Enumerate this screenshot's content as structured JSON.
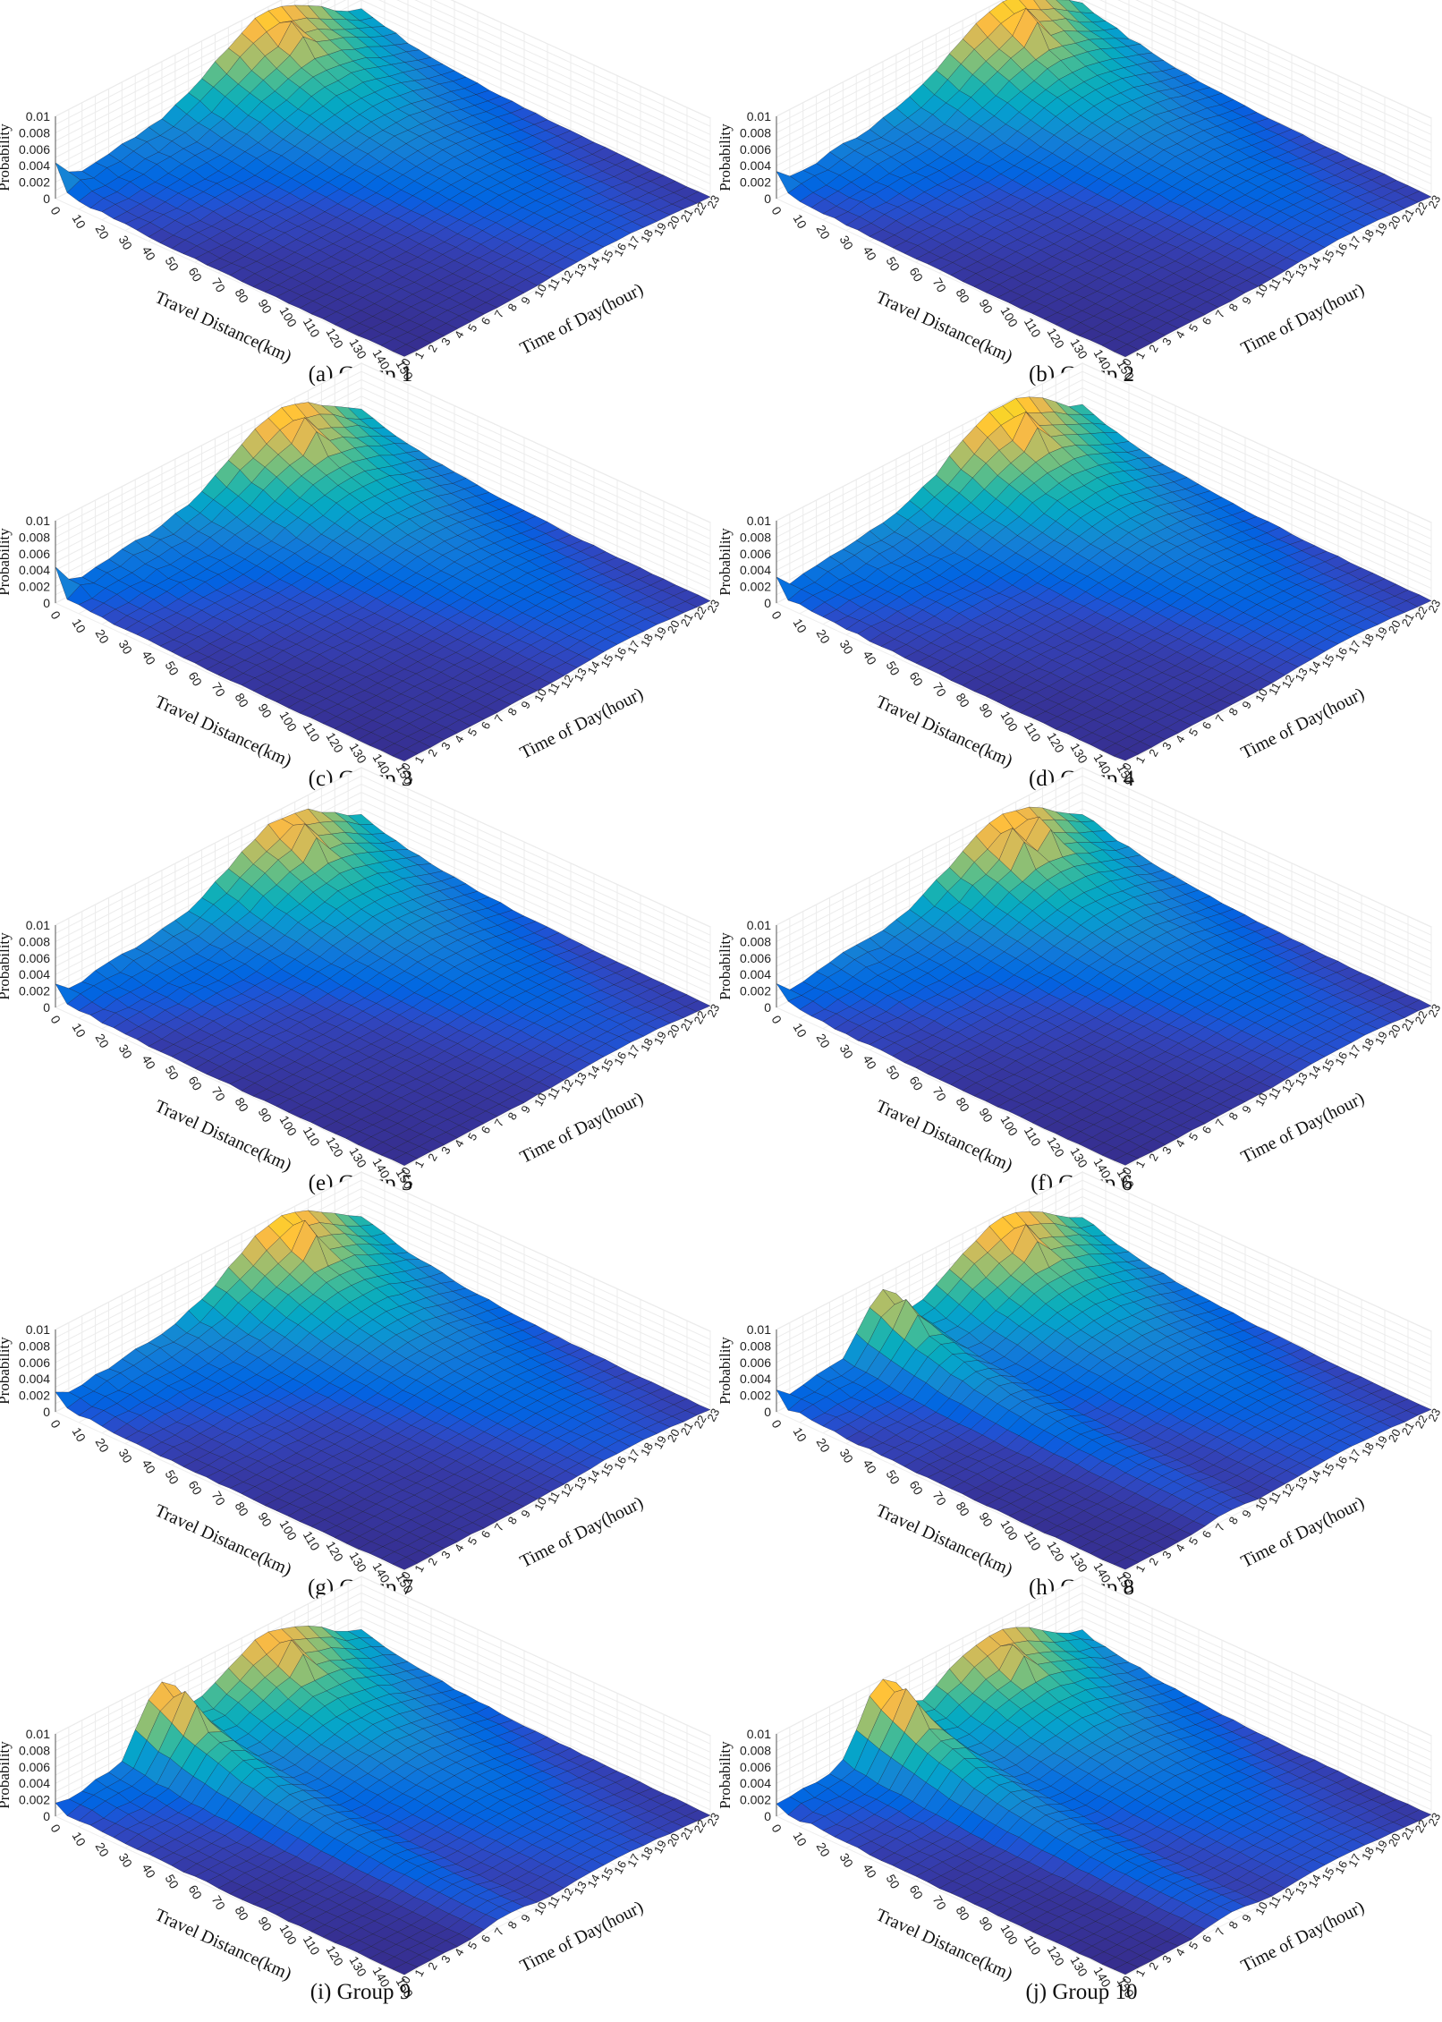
{
  "figure": {
    "panels": [
      {
        "caption": "(a) Group 1"
      },
      {
        "caption": "(b) Group 2"
      },
      {
        "caption": "(c) Group 3"
      },
      {
        "caption": "(d) Group 4"
      },
      {
        "caption": "(e) Group 5"
      },
      {
        "caption": "(f) Group 6"
      },
      {
        "caption": "(g) Group 7"
      },
      {
        "caption": "(h) Group 8"
      },
      {
        "caption": "(i) Group 9"
      },
      {
        "caption": "(j) Group 10"
      }
    ]
  },
  "chart_data": [
    {
      "type": "surface",
      "title": "",
      "caption": "(a) Group 1",
      "xlabel": "Travel Distance(km)",
      "ylabel": "Time of Day(hour)",
      "zlabel": "Probability",
      "x_ticks": [
        "0",
        "10",
        "20",
        "30",
        "40",
        "50",
        "60",
        "70",
        "80",
        "90",
        "100",
        "110",
        "120",
        "130",
        "140",
        "150"
      ],
      "y_ticks": [
        "0",
        "1",
        "2",
        "3",
        "4",
        "5",
        "6",
        "7",
        "8",
        "9",
        "10",
        "11",
        "12",
        "13",
        "14",
        "15",
        "16",
        "17",
        "18",
        "19",
        "20",
        "21",
        "22",
        "23"
      ],
      "z_ticks": [
        "0",
        "0.002",
        "0.004",
        "0.006",
        "0.008",
        "0.01"
      ],
      "zlim": [
        0,
        0.01
      ],
      "colormap": "parula",
      "peaks": [
        {
          "distance": 10,
          "hour": 16,
          "value": 0.0096
        }
      ],
      "ridge_hour": 16,
      "ridge_value": 0.0095,
      "morning_bump": 0.0,
      "corner_value": 0.0045,
      "corner_dip": 0.0012
    },
    {
      "type": "surface",
      "title": "",
      "caption": "(b) Group 2",
      "xlabel": "Travel Distance(km)",
      "ylabel": "Time of Day(hour)",
      "zlabel": "Probability",
      "x_ticks": [
        "0",
        "10",
        "20",
        "30",
        "40",
        "50",
        "60",
        "70",
        "80",
        "90",
        "100",
        "110",
        "120",
        "130",
        "140",
        "150"
      ],
      "y_ticks": [
        "0",
        "1",
        "2",
        "3",
        "4",
        "5",
        "6",
        "7",
        "8",
        "9",
        "10",
        "11",
        "12",
        "13",
        "14",
        "15",
        "16",
        "17",
        "18",
        "19",
        "20",
        "21",
        "22",
        "23"
      ],
      "z_ticks": [
        "0",
        "0.002",
        "0.004",
        "0.006",
        "0.008",
        "0.01"
      ],
      "zlim": [
        0,
        0.01
      ],
      "colormap": "parula",
      "peaks": [
        {
          "distance": 10,
          "hour": 17,
          "value": 0.0104
        }
      ],
      "ridge_hour": 17,
      "ridge_value": 0.0098,
      "morning_bump": 0.0,
      "corner_value": 0.0035,
      "corner_dip": 0.0012
    },
    {
      "type": "surface",
      "title": "",
      "caption": "(c) Group 3",
      "xlabel": "Travel Distance(km)",
      "ylabel": "Time of Day(hour)",
      "zlabel": "Probability",
      "x_ticks": [
        "0",
        "10",
        "20",
        "30",
        "40",
        "50",
        "60",
        "70",
        "80",
        "90",
        "100",
        "110",
        "120",
        "130",
        "140",
        "150"
      ],
      "y_ticks": [
        "0",
        "1",
        "2",
        "3",
        "4",
        "5",
        "6",
        "7",
        "8",
        "9",
        "10",
        "11",
        "12",
        "13",
        "14",
        "15",
        "16",
        "17",
        "18",
        "19",
        "20",
        "21",
        "22",
        "23"
      ],
      "z_ticks": [
        "0",
        "0.002",
        "0.004",
        "0.006",
        "0.008",
        "0.01"
      ],
      "zlim": [
        0,
        0.01
      ],
      "colormap": "parula",
      "peaks": [
        {
          "distance": 10,
          "hour": 17,
          "value": 0.0098
        }
      ],
      "ridge_hour": 17,
      "ridge_value": 0.0094,
      "morning_bump": 0.0,
      "corner_value": 0.0045,
      "corner_dip": 0.0012
    },
    {
      "type": "surface",
      "title": "",
      "caption": "(d) Group 4",
      "xlabel": "Travel Distance(km)",
      "ylabel": "Time of Day(hour)",
      "zlabel": "Probability",
      "x_ticks": [
        "0",
        "10",
        "20",
        "30",
        "40",
        "50",
        "60",
        "70",
        "80",
        "90",
        "100",
        "110",
        "120",
        "130",
        "140",
        "150"
      ],
      "y_ticks": [
        "0",
        "1",
        "2",
        "3",
        "4",
        "5",
        "6",
        "7",
        "8",
        "9",
        "10",
        "11",
        "12",
        "13",
        "14",
        "15",
        "16",
        "17",
        "18",
        "19",
        "20",
        "21",
        "22",
        "23"
      ],
      "z_ticks": [
        "0",
        "0.002",
        "0.004",
        "0.006",
        "0.008",
        "0.01"
      ],
      "zlim": [
        0,
        0.01
      ],
      "colormap": "parula",
      "peaks": [
        {
          "distance": 10,
          "hour": 17,
          "value": 0.0104
        }
      ],
      "ridge_hour": 17,
      "ridge_value": 0.01,
      "morning_bump": 0.0,
      "corner_value": 0.0032,
      "corner_dip": 0.001
    },
    {
      "type": "surface",
      "title": "",
      "caption": "(e) Group 5",
      "xlabel": "Travel Distance(km)",
      "ylabel": "Time of Day(hour)",
      "zlabel": "Probability",
      "x_ticks": [
        "0",
        "10",
        "20",
        "30",
        "40",
        "50",
        "60",
        "70",
        "80",
        "90",
        "100",
        "110",
        "120",
        "130",
        "140",
        "150"
      ],
      "y_ticks": [
        "0",
        "1",
        "2",
        "3",
        "4",
        "5",
        "6",
        "7",
        "8",
        "9",
        "10",
        "11",
        "12",
        "13",
        "14",
        "15",
        "16",
        "17",
        "18",
        "19",
        "20",
        "21",
        "22",
        "23"
      ],
      "z_ticks": [
        "0",
        "0.002",
        "0.004",
        "0.006",
        "0.008",
        "0.01"
      ],
      "zlim": [
        0,
        0.01
      ],
      "colormap": "parula",
      "peaks": [
        {
          "distance": 10,
          "hour": 17,
          "value": 0.0096
        }
      ],
      "ridge_hour": 17,
      "ridge_value": 0.009,
      "morning_bump": 0.0,
      "corner_value": 0.003,
      "corner_dip": 0.001
    },
    {
      "type": "surface",
      "title": "",
      "caption": "(f) Group 6",
      "xlabel": "Travel Distance(km)",
      "ylabel": "Time of Day(hour)",
      "zlabel": "Probability",
      "x_ticks": [
        "0",
        "10",
        "20",
        "30",
        "40",
        "50",
        "60",
        "70",
        "80",
        "90",
        "100",
        "110",
        "120",
        "130",
        "140",
        "150"
      ],
      "y_ticks": [
        "0",
        "1",
        "2",
        "3",
        "4",
        "5",
        "6",
        "7",
        "8",
        "9",
        "10",
        "11",
        "12",
        "13",
        "14",
        "15",
        "16",
        "17",
        "18",
        "19",
        "20",
        "21",
        "22",
        "23"
      ],
      "z_ticks": [
        "0",
        "0.002",
        "0.004",
        "0.006",
        "0.008",
        "0.01"
      ],
      "zlim": [
        0,
        0.01
      ],
      "colormap": "parula",
      "peaks": [
        {
          "distance": 10,
          "hour": 16,
          "value": 0.0098
        },
        {
          "distance": 10,
          "hour": 18,
          "value": 0.0096
        }
      ],
      "ridge_hour": 17,
      "ridge_value": 0.0092,
      "morning_bump": 0.0,
      "corner_value": 0.003,
      "corner_dip": 0.0012
    },
    {
      "type": "surface",
      "title": "",
      "caption": "(g) Group 7",
      "xlabel": "Travel Distance(km)",
      "ylabel": "Time of Day(hour)",
      "zlabel": "Probability",
      "x_ticks": [
        "0",
        "10",
        "20",
        "30",
        "40",
        "50",
        "60",
        "70",
        "80",
        "90",
        "100",
        "110",
        "120",
        "130",
        "140",
        "150"
      ],
      "y_ticks": [
        "0",
        "1",
        "2",
        "3",
        "4",
        "5",
        "6",
        "7",
        "8",
        "9",
        "10",
        "11",
        "12",
        "13",
        "14",
        "15",
        "16",
        "17",
        "18",
        "19",
        "20",
        "21",
        "22",
        "23"
      ],
      "z_ticks": [
        "0",
        "0.002",
        "0.004",
        "0.006",
        "0.008",
        "0.01"
      ],
      "zlim": [
        0,
        0.01
      ],
      "colormap": "parula",
      "peaks": [
        {
          "distance": 10,
          "hour": 17,
          "value": 0.0104
        }
      ],
      "ridge_hour": 17,
      "ridge_value": 0.0096,
      "morning_bump": 0.0,
      "corner_value": 0.0025,
      "corner_dip": 0.001
    },
    {
      "type": "surface",
      "title": "",
      "caption": "(h) Group 8",
      "xlabel": "Travel Distance(km)",
      "ylabel": "Time of Day(hour)",
      "zlabel": "Probability",
      "x_ticks": [
        "0",
        "10",
        "20",
        "30",
        "40",
        "50",
        "60",
        "70",
        "80",
        "90",
        "100",
        "110",
        "120",
        "130",
        "140",
        "150"
      ],
      "y_ticks": [
        "0",
        "1",
        "2",
        "3",
        "4",
        "5",
        "6",
        "7",
        "8",
        "9",
        "10",
        "11",
        "12",
        "13",
        "14",
        "15",
        "16",
        "17",
        "18",
        "19",
        "20",
        "21",
        "22",
        "23"
      ],
      "z_ticks": [
        "0",
        "0.002",
        "0.004",
        "0.006",
        "0.008",
        "0.01"
      ],
      "zlim": [
        0,
        0.01
      ],
      "colormap": "parula",
      "peaks": [
        {
          "distance": 10,
          "hour": 17,
          "value": 0.0098
        },
        {
          "distance": 10,
          "hour": 8,
          "value": 0.0082
        }
      ],
      "ridge_hour": 17,
      "ridge_value": 0.0094,
      "morning_bump": 0.008,
      "corner_value": 0.0025,
      "corner_dip": 0.001
    },
    {
      "type": "surface",
      "title": "",
      "caption": "(i) Group 9",
      "xlabel": "Travel Distance(km)",
      "ylabel": "Time of Day(hour)",
      "zlabel": "Probability",
      "x_ticks": [
        "0",
        "10",
        "20",
        "30",
        "40",
        "50",
        "60",
        "70",
        "80",
        "90",
        "100",
        "110",
        "120",
        "130",
        "140",
        "150"
      ],
      "y_ticks": [
        "0",
        "1",
        "2",
        "3",
        "4",
        "5",
        "6",
        "7",
        "8",
        "9",
        "10",
        "11",
        "12",
        "13",
        "14",
        "15",
        "16",
        "17",
        "18",
        "19",
        "20",
        "21",
        "22",
        "23"
      ],
      "z_ticks": [
        "0",
        "0.002",
        "0.004",
        "0.006",
        "0.008",
        "0.01"
      ],
      "zlim": [
        0,
        0.01
      ],
      "colormap": "parula",
      "peaks": [
        {
          "distance": 10,
          "hour": 8,
          "value": 0.0098
        },
        {
          "distance": 10,
          "hour": 16,
          "value": 0.0094
        }
      ],
      "ridge_hour": 16,
      "ridge_value": 0.009,
      "morning_bump": 0.0096,
      "corner_value": 0.0015,
      "corner_dip": 0.0008
    },
    {
      "type": "surface",
      "title": "",
      "caption": "(j) Group 10",
      "xlabel": "Travel Distance(km)",
      "ylabel": "Time of Day(hour)",
      "zlabel": "Probability",
      "x_ticks": [
        "0",
        "10",
        "20",
        "30",
        "40",
        "50",
        "60",
        "70",
        "80",
        "90",
        "100",
        "110",
        "120",
        "130",
        "140",
        "150"
      ],
      "y_ticks": [
        "0",
        "1",
        "2",
        "3",
        "4",
        "5",
        "6",
        "7",
        "8",
        "9",
        "10",
        "11",
        "12",
        "13",
        "14",
        "15",
        "16",
        "17",
        "18",
        "19",
        "20",
        "21",
        "22",
        "23"
      ],
      "z_ticks": [
        "0",
        "0.002",
        "0.004",
        "0.006",
        "0.008",
        "0.01"
      ],
      "zlim": [
        0,
        0.01
      ],
      "colormap": "parula",
      "peaks": [
        {
          "distance": 10,
          "hour": 8,
          "value": 0.0102
        },
        {
          "distance": 10,
          "hour": 16,
          "value": 0.009
        }
      ],
      "ridge_hour": 16,
      "ridge_value": 0.0086,
      "morning_bump": 0.01,
      "corner_value": 0.0015,
      "corner_dip": 0.0008
    }
  ]
}
